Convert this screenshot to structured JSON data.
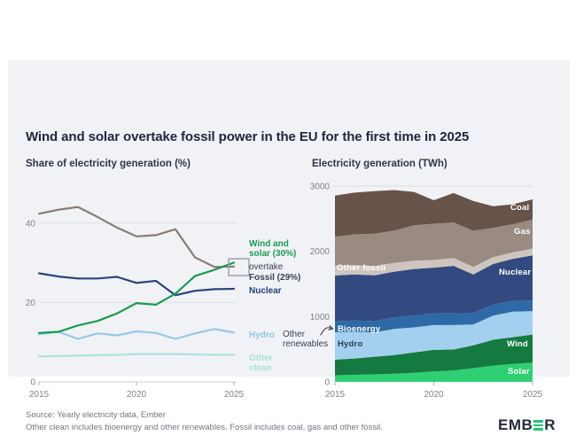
{
  "title": "Wind and solar overtake fossil power in the EU for the first time in 2025",
  "left_chart": {
    "subtitle": "Share of electricity generation (%)",
    "y_tick_labels": [
      "40",
      "20",
      "0"
    ],
    "x_tick_labels": [
      "2015",
      "2020",
      "2025"
    ],
    "annotations": {
      "wind_solar_line1": "Wind and",
      "wind_solar_line2": "solar (30%)",
      "overtake": "overtake",
      "fossil": "Fossil (29%)",
      "nuclear": "Nuclear",
      "hydro": "Hydro",
      "other_clean_line1": "Other",
      "other_clean_line2": "clean"
    }
  },
  "right_chart": {
    "subtitle": "Electricity generation (TWh)",
    "y_tick_labels": [
      "3000",
      "2000",
      "1000",
      "0"
    ],
    "x_tick_labels": [
      "2015",
      "2020",
      "2025"
    ],
    "outside_annotation_line1": "Other",
    "outside_annotation_line2": "renewables"
  },
  "chart_data": [
    {
      "type": "line",
      "title": "Share of electricity generation (%)",
      "x": [
        2015,
        2016,
        2017,
        2018,
        2019,
        2020,
        2021,
        2022,
        2023,
        2024,
        2025
      ],
      "xticks": [
        2015,
        2020,
        2025
      ],
      "yticks": [
        0,
        20,
        40
      ],
      "ylim": [
        0,
        47
      ],
      "grid": true,
      "series": [
        {
          "name": "Fossil",
          "color": "#8a7b73",
          "values": [
            42.3,
            43.3,
            44.0,
            41.5,
            38.8,
            36.6,
            36.9,
            38.4,
            31.3,
            28.9,
            29.0
          ]
        },
        {
          "name": "Nuclear",
          "color": "#27447f",
          "values": [
            27.3,
            26.5,
            26.0,
            26.0,
            26.4,
            24.9,
            25.4,
            21.8,
            22.9,
            23.3,
            23.4
          ]
        },
        {
          "name": "Hydro",
          "color": "#96c8eb",
          "values": [
            12.0,
            12.6,
            10.8,
            12.2,
            11.7,
            12.7,
            12.3,
            10.8,
            12.2,
            13.3,
            12.4
          ]
        },
        {
          "name": "Other clean",
          "color": "#abe3da",
          "values": [
            6.4,
            6.5,
            6.6,
            6.7,
            6.8,
            7.0,
            7.0,
            7.0,
            6.9,
            6.8,
            6.8
          ]
        },
        {
          "name": "Wind and solar",
          "color": "#189c4f",
          "values": [
            12.3,
            12.6,
            14.2,
            15.3,
            17.2,
            19.8,
            19.4,
            22.2,
            26.6,
            28.2,
            30.0
          ]
        }
      ]
    },
    {
      "type": "area",
      "title": "Electricity generation (TWh)",
      "x": [
        2015,
        2016,
        2017,
        2018,
        2019,
        2020,
        2021,
        2022,
        2023,
        2024,
        2025
      ],
      "xticks": [
        2015,
        2020,
        2025
      ],
      "yticks": [
        0,
        1000,
        2000,
        3000
      ],
      "ylim": [
        0,
        3000
      ],
      "grid": true,
      "stack_order": "bottom-up",
      "series": [
        {
          "name": "Solar",
          "color": "#2ed073",
          "values": [
            100,
            108,
            116,
            126,
            140,
            160,
            175,
            210,
            250,
            275,
            295
          ]
        },
        {
          "name": "Wind",
          "color": "#157a40",
          "values": [
            240,
            250,
            270,
            285,
            310,
            330,
            320,
            350,
            395,
            410,
            430
          ]
        },
        {
          "name": "Hydro",
          "color": "#a3d0ee",
          "values": [
            420,
            410,
            370,
            400,
            385,
            380,
            375,
            320,
            370,
            390,
            360
          ]
        },
        {
          "name": "Bioenergy",
          "color": "#2f6aa8",
          "values": [
            170,
            172,
            175,
            178,
            180,
            180,
            178,
            175,
            170,
            165,
            162
          ]
        },
        {
          "name": "Nuclear",
          "color": "#334a80",
          "values": [
            700,
            705,
            700,
            700,
            715,
            700,
            730,
            590,
            620,
            645,
            690
          ]
        },
        {
          "name": "Other fossil",
          "color": "#cdc6bf",
          "values": [
            150,
            145,
            140,
            135,
            125,
            118,
            120,
            115,
            105,
            100,
            105
          ]
        },
        {
          "name": "Gas",
          "color": "#998a82",
          "values": [
            445,
            470,
            500,
            495,
            545,
            555,
            545,
            555,
            450,
            430,
            445
          ]
        },
        {
          "name": "Coal",
          "color": "#675349",
          "values": [
            630,
            640,
            650,
            620,
            510,
            360,
            450,
            455,
            330,
            305,
            310
          ]
        }
      ]
    }
  ],
  "footer": {
    "source": "Source: Yearly electricity data, Ember",
    "note": "Other clean includes bioenergy and other renewables. Fossil includes coal, gas and other fossil."
  },
  "logo": {
    "text_start": "EMB",
    "text_end": "R",
    "accent_color": "#1ec977"
  }
}
